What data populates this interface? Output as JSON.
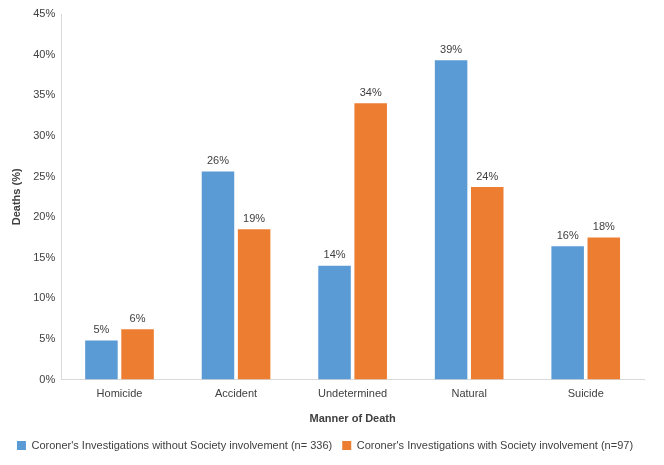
{
  "chart_data": {
    "type": "bar",
    "x_label": "Manner of Death",
    "y_label": "Deaths (%)",
    "categories": [
      "Homicide",
      "Accident",
      "Undetermined",
      "Natural",
      "Suicide"
    ],
    "series": [
      {
        "name": "Coroner's Investigations without Society involvement (n= 336)",
        "color": "#5b9bd5",
        "values": [
          4.8,
          25.6,
          14.0,
          39.3,
          16.4
        ],
        "value_labels": [
          "5%",
          "26%",
          "14%",
          "39%",
          "16%"
        ]
      },
      {
        "name": "Coroner's Investigations with Society involvement (n=97)",
        "color": "#ed7d31",
        "values": [
          6.2,
          18.5,
          34.0,
          23.7,
          17.5
        ],
        "value_labels": [
          "6%",
          "19%",
          "34%",
          "24%",
          "18%"
        ]
      }
    ],
    "ylim": [
      0,
      45
    ],
    "yticks": [
      {
        "value": 0,
        "label": "0%"
      },
      {
        "value": 5,
        "label": "5%"
      },
      {
        "value": 10,
        "label": "10%"
      },
      {
        "value": 15,
        "label": "15%"
      },
      {
        "value": 20,
        "label": "20%"
      },
      {
        "value": 25,
        "label": "25%"
      },
      {
        "value": 30,
        "label": "30%"
      },
      {
        "value": 35,
        "label": "35%"
      },
      {
        "value": 40,
        "label": "40%"
      },
      {
        "value": 45,
        "label": "45%"
      }
    ],
    "grid": false,
    "legend": "bottom",
    "data_labels": true
  }
}
